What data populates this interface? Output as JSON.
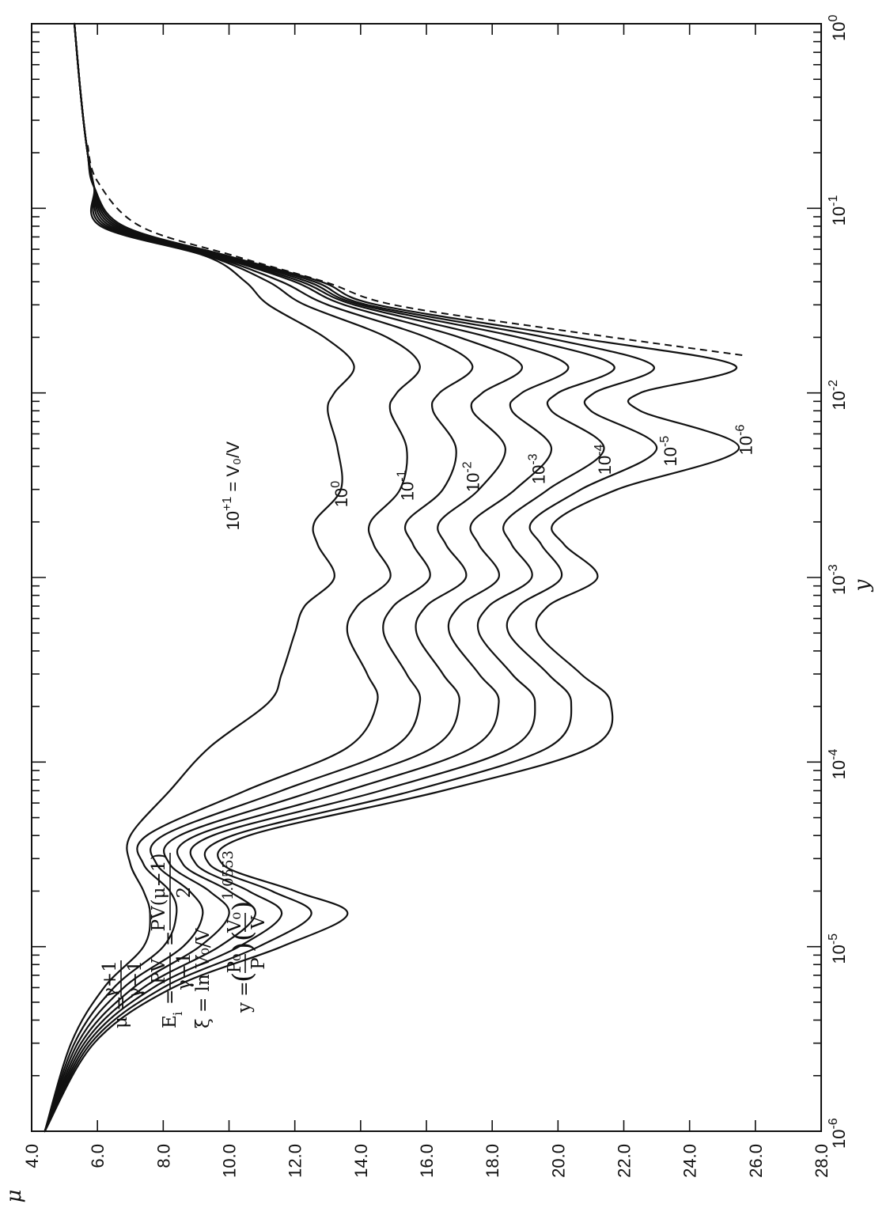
{
  "chart_data": {
    "type": "line",
    "xlabel": "y",
    "ylabel": "μ",
    "xscale": "log",
    "xlim": [
      "10^-6",
      "10^0"
    ],
    "ylim": [
      4.0,
      28.0
    ],
    "grid": false,
    "x_tick_labels": [
      {
        "value": 1e-06,
        "base": "10",
        "exp": "-6"
      },
      {
        "value": 1e-05,
        "base": "10",
        "exp": "-5"
      },
      {
        "value": 0.0001,
        "base": "10",
        "exp": "-4"
      },
      {
        "value": 0.001,
        "base": "10",
        "exp": "-3"
      },
      {
        "value": 0.01,
        "base": "10",
        "exp": "-2"
      },
      {
        "value": 0.1,
        "base": "10",
        "exp": "-1"
      },
      {
        "value": 1,
        "base": "10",
        "exp": "0"
      }
    ],
    "y_tick_labels": [
      "4.0",
      "6.0",
      "8.0",
      "10.0",
      "12.0",
      "14.0",
      "16.0",
      "18.0",
      "20.0",
      "22.0",
      "24.0",
      "26.0",
      "28.0"
    ],
    "series": [
      {
        "name": "10^-6",
        "label_base": "10",
        "label_exp": "-6",
        "label_suffix": "",
        "x": [
          1e-06,
          3e-06,
          6e-06,
          1e-05,
          1.5e-05,
          2e-05,
          2.8e-05,
          4e-05,
          7e-05,
          0.00012,
          0.00021,
          0.0003,
          0.0005,
          0.0007,
          0.001,
          0.0015,
          0.002,
          0.003,
          0.005,
          0.008,
          0.01,
          0.014,
          0.02,
          0.03,
          0.04,
          0.055,
          0.08,
          0.13,
          0.2,
          0.4,
          1
        ],
        "y": [
          4.4,
          5.9,
          8.3,
          11.6,
          13.6,
          12.0,
          9.8,
          10.6,
          16.5,
          21.0,
          21.6,
          20.7,
          19.4,
          19.7,
          21.2,
          20.2,
          19.9,
          21.8,
          25.5,
          22.5,
          22.5,
          25.4,
          20.5,
          14.5,
          12.8,
          10.0,
          6.8,
          5.9,
          5.7,
          5.5,
          5.3
        ]
      },
      {
        "name": "10^-5",
        "label_base": "10",
        "label_exp": "-5",
        "label_suffix": "",
        "x": [
          1e-06,
          3e-06,
          6e-06,
          1e-05,
          1.5e-05,
          2e-05,
          2.8e-05,
          4e-05,
          7e-05,
          0.00012,
          0.00021,
          0.0003,
          0.0005,
          0.0007,
          0.001,
          0.0015,
          0.002,
          0.003,
          0.005,
          0.008,
          0.01,
          0.014,
          0.02,
          0.03,
          0.04,
          0.055,
          0.08,
          0.13,
          0.2,
          0.4,
          1
        ],
        "y": [
          4.4,
          5.8,
          8.0,
          10.9,
          12.5,
          11.3,
          9.4,
          10.1,
          15.6,
          19.7,
          20.4,
          19.7,
          18.5,
          18.8,
          20.1,
          19.5,
          19.2,
          20.7,
          23.0,
          21.0,
          21.1,
          22.9,
          19.6,
          14.2,
          12.6,
          9.9,
          6.7,
          5.9,
          5.7,
          5.5,
          5.3
        ]
      },
      {
        "name": "10^-4",
        "label_base": "10",
        "label_exp": "-4",
        "label_suffix": "",
        "x": [
          1e-06,
          3e-06,
          6e-06,
          1e-05,
          1.5e-05,
          2e-05,
          2.8e-05,
          4e-05,
          7e-05,
          0.00012,
          0.00021,
          0.0003,
          0.0005,
          0.0007,
          0.001,
          0.0015,
          0.002,
          0.003,
          0.005,
          0.008,
          0.01,
          0.014,
          0.02,
          0.03,
          0.04,
          0.055,
          0.08,
          0.13,
          0.2,
          0.4,
          1
        ],
        "y": [
          4.4,
          5.7,
          7.7,
          10.3,
          11.6,
          10.6,
          9.0,
          9.5,
          14.6,
          18.6,
          19.3,
          18.6,
          17.6,
          17.9,
          19.2,
          18.6,
          18.4,
          19.7,
          21.4,
          19.8,
          20.0,
          21.7,
          18.8,
          14.0,
          12.4,
          9.8,
          6.6,
          5.9,
          5.7,
          5.5,
          5.3
        ]
      },
      {
        "name": "10^-3",
        "label_base": "10",
        "label_exp": "-3",
        "label_suffix": "",
        "x": [
          1e-06,
          3e-06,
          6e-06,
          1e-05,
          1.5e-05,
          2e-05,
          2.8e-05,
          4e-05,
          7e-05,
          0.00012,
          0.00021,
          0.0003,
          0.0005,
          0.0007,
          0.001,
          0.0015,
          0.002,
          0.003,
          0.005,
          0.008,
          0.01,
          0.014,
          0.02,
          0.03,
          0.04,
          0.055,
          0.08,
          0.13,
          0.2,
          0.4,
          1
        ],
        "y": [
          4.4,
          5.6,
          7.4,
          9.7,
          10.8,
          10.0,
          8.6,
          9.0,
          13.6,
          17.4,
          18.2,
          17.6,
          16.7,
          17.0,
          18.2,
          17.6,
          17.4,
          18.7,
          19.8,
          18.6,
          18.9,
          20.3,
          17.9,
          13.8,
          12.2,
          9.7,
          6.5,
          5.9,
          5.7,
          5.5,
          5.3
        ]
      },
      {
        "name": "10^-2",
        "label_base": "10",
        "label_exp": "-2",
        "label_suffix": "",
        "x": [
          1e-06,
          3e-06,
          6e-06,
          1e-05,
          1.5e-05,
          2e-05,
          2.8e-05,
          4e-05,
          7e-05,
          0.00012,
          0.00021,
          0.0003,
          0.0005,
          0.0007,
          0.001,
          0.0015,
          0.002,
          0.003,
          0.005,
          0.008,
          0.01,
          0.014,
          0.02,
          0.03,
          0.04,
          0.055,
          0.08,
          0.13,
          0.2,
          0.4,
          1
        ],
        "y": [
          4.4,
          5.5,
          7.1,
          9.1,
          10.0,
          9.4,
          8.2,
          8.5,
          12.6,
          16.2,
          17.0,
          16.5,
          15.7,
          16.0,
          17.2,
          16.6,
          16.4,
          17.6,
          18.4,
          17.4,
          17.7,
          18.9,
          17.0,
          13.5,
          12.0,
          9.6,
          6.4,
          5.9,
          5.7,
          5.5,
          5.3
        ]
      },
      {
        "name": "10^-1",
        "label_base": "10",
        "label_exp": "-1",
        "label_suffix": "",
        "x": [
          1e-06,
          3e-06,
          6e-06,
          1e-05,
          1.5e-05,
          2e-05,
          2.8e-05,
          4e-05,
          7e-05,
          0.00012,
          0.00021,
          0.0003,
          0.0005,
          0.0007,
          0.001,
          0.0015,
          0.002,
          0.003,
          0.005,
          0.008,
          0.01,
          0.014,
          0.02,
          0.03,
          0.04,
          0.055,
          0.08,
          0.13,
          0.2,
          0.4,
          1
        ],
        "y": [
          4.4,
          5.4,
          6.8,
          8.6,
          9.2,
          8.8,
          7.8,
          8.0,
          11.6,
          15.0,
          15.8,
          15.4,
          14.7,
          15.0,
          16.1,
          15.6,
          15.4,
          16.5,
          16.9,
          16.2,
          16.4,
          17.4,
          16.0,
          13.0,
          11.6,
          9.5,
          6.3,
          5.9,
          5.7,
          5.5,
          5.3
        ]
      },
      {
        "name": "10^0",
        "label_base": "10",
        "label_exp": "0",
        "label_suffix": "",
        "x": [
          1e-06,
          3e-06,
          6e-06,
          1e-05,
          1.5e-05,
          2e-05,
          2.8e-05,
          4e-05,
          7e-05,
          0.00012,
          0.00021,
          0.0003,
          0.0005,
          0.0007,
          0.001,
          0.0015,
          0.002,
          0.003,
          0.005,
          0.008,
          0.01,
          0.014,
          0.02,
          0.03,
          0.04,
          0.055,
          0.08,
          0.13,
          0.2,
          0.4,
          1
        ],
        "y": [
          4.4,
          5.3,
          6.5,
          8.0,
          8.4,
          8.2,
          7.4,
          7.5,
          10.5,
          13.6,
          14.5,
          14.2,
          13.6,
          13.9,
          14.9,
          14.4,
          14.3,
          15.2,
          15.4,
          14.9,
          15.1,
          15.8,
          14.8,
          12.3,
          11.2,
          9.4,
          6.2,
          5.9,
          5.7,
          5.5,
          5.3
        ]
      },
      {
        "name": "10^+1 = V0/V",
        "label_base": "10",
        "label_exp": "+1",
        "label_suffix": " = V₀/V",
        "x": [
          1e-06,
          3e-06,
          6e-06,
          1e-05,
          1.5e-05,
          2e-05,
          2.8e-05,
          4e-05,
          7e-05,
          0.00012,
          0.00021,
          0.0003,
          0.0005,
          0.0007,
          0.001,
          0.0015,
          0.002,
          0.003,
          0.005,
          0.008,
          0.01,
          0.014,
          0.02,
          0.03,
          0.04,
          0.055,
          0.08,
          0.13,
          0.2,
          0.4,
          1
        ],
        "y": [
          4.4,
          5.2,
          6.2,
          7.4,
          7.6,
          7.4,
          7.0,
          7.0,
          8.2,
          9.4,
          11.2,
          11.6,
          12.0,
          12.3,
          13.2,
          12.7,
          12.6,
          13.4,
          13.3,
          13.0,
          13.2,
          13.8,
          12.9,
          11.2,
          10.5,
          9.3,
          6.1,
          5.9,
          5.7,
          5.5,
          5.3
        ]
      }
    ],
    "annotation_formulas": {
      "line1_lhs": "μ =",
      "line1_num": "γ+1",
      "line1_den": "γ−1",
      "line2_lhs": "E",
      "line2_sub": "i",
      "line2_eq": "=",
      "line2_num_a": "PV",
      "line2_den_a": "γ−1",
      "line2_eq2": "=",
      "line2_num_b": "PV(μ−1)",
      "line2_den_b": "2",
      "line3": "ξ = ln V₀/V",
      "line4_lhs": "y =",
      "line4_p_num": "P₀",
      "line4_p_den": "P",
      "line4_v_num": "V₀",
      "line4_v_den": "V",
      "line4_exp": "1.0553"
    }
  }
}
